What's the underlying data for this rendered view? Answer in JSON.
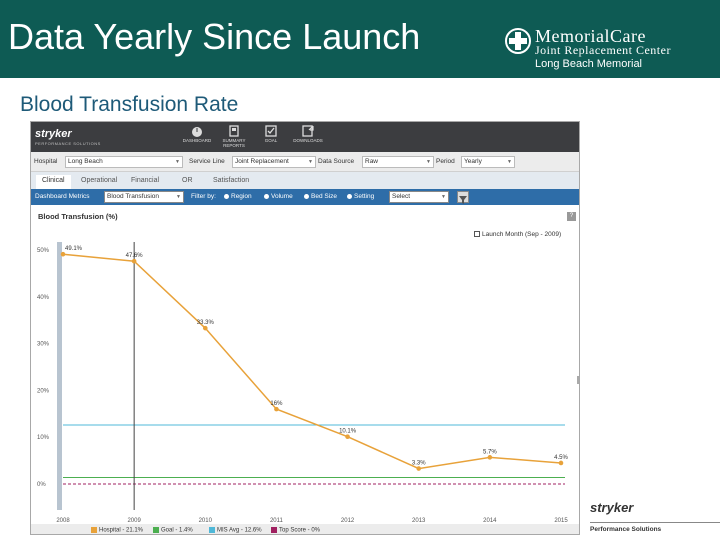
{
  "slide": {
    "title": "Data Yearly Since Launch",
    "subtitle": "Blood Transfusion Rate",
    "logo": {
      "line1": "MemorialCare",
      "line2": "Joint Replacement Center",
      "location": "Long Beach Memorial"
    },
    "footer": {
      "brand": "stryker",
      "sub": "Performance Solutions"
    }
  },
  "app": {
    "brand": "stryker",
    "brand_sub": "PERFORMANCE SOLUTIONS",
    "nav": [
      "DASHBOARD",
      "SUMMARY REPORTS",
      "GOAL",
      "DOWNLOADS"
    ],
    "filters": [
      {
        "label": "Hospital",
        "value": "Long Beach"
      },
      {
        "label": "Service Line",
        "value": "Joint Replacement"
      },
      {
        "label": "Data Source",
        "value": "Raw"
      },
      {
        "label": "Period",
        "value": "Yearly"
      }
    ],
    "tabs": [
      "Clinical",
      "Operational",
      "Financial",
      "OR",
      "Satisfaction"
    ],
    "metric_label": "Dashboard Metrics",
    "metric_value": "Blood Transfusion",
    "filter_by": "Filter by:",
    "filter_options": [
      "Region",
      "Volume",
      "Bed Size",
      "Setting"
    ],
    "filter_select": "Select",
    "help": "?"
  },
  "chart_data": {
    "type": "line",
    "title": "Blood Transfusion (%)",
    "categories": [
      "2008",
      "2009",
      "2010",
      "2011",
      "2012",
      "2013",
      "2014",
      "2015"
    ],
    "series": [
      {
        "name": "Hospital - 21.1%",
        "values": [
          49.1,
          47.6,
          33.3,
          16,
          10.1,
          3.3,
          5.7,
          4.5
        ],
        "color": "#e8a23a"
      }
    ],
    "data_labels": [
      "49.1%",
      "47.6%",
      "33.3%",
      "16%",
      "10.1%",
      "3.3%",
      "5.7%",
      "4.5%"
    ],
    "reference_lines": [
      {
        "name": "Goal - 1.4%",
        "value": 1.4,
        "color": "#4caf50"
      },
      {
        "name": "MIS Avg - 12.6%",
        "value": 12.6,
        "color": "#4fb8d8"
      },
      {
        "name": "Top Score - 0%",
        "value": 0,
        "color": "#a02060"
      }
    ],
    "launch": {
      "label": "Launch Month (Sep - 2009)",
      "x": "2009"
    },
    "ylim": [
      0,
      50
    ],
    "yticks": [
      "0%",
      "10%",
      "20%",
      "30%",
      "40%",
      "50%"
    ],
    "ytick_values": [
      0,
      10,
      20,
      30,
      40,
      50
    ],
    "legend_position": "bottom"
  }
}
